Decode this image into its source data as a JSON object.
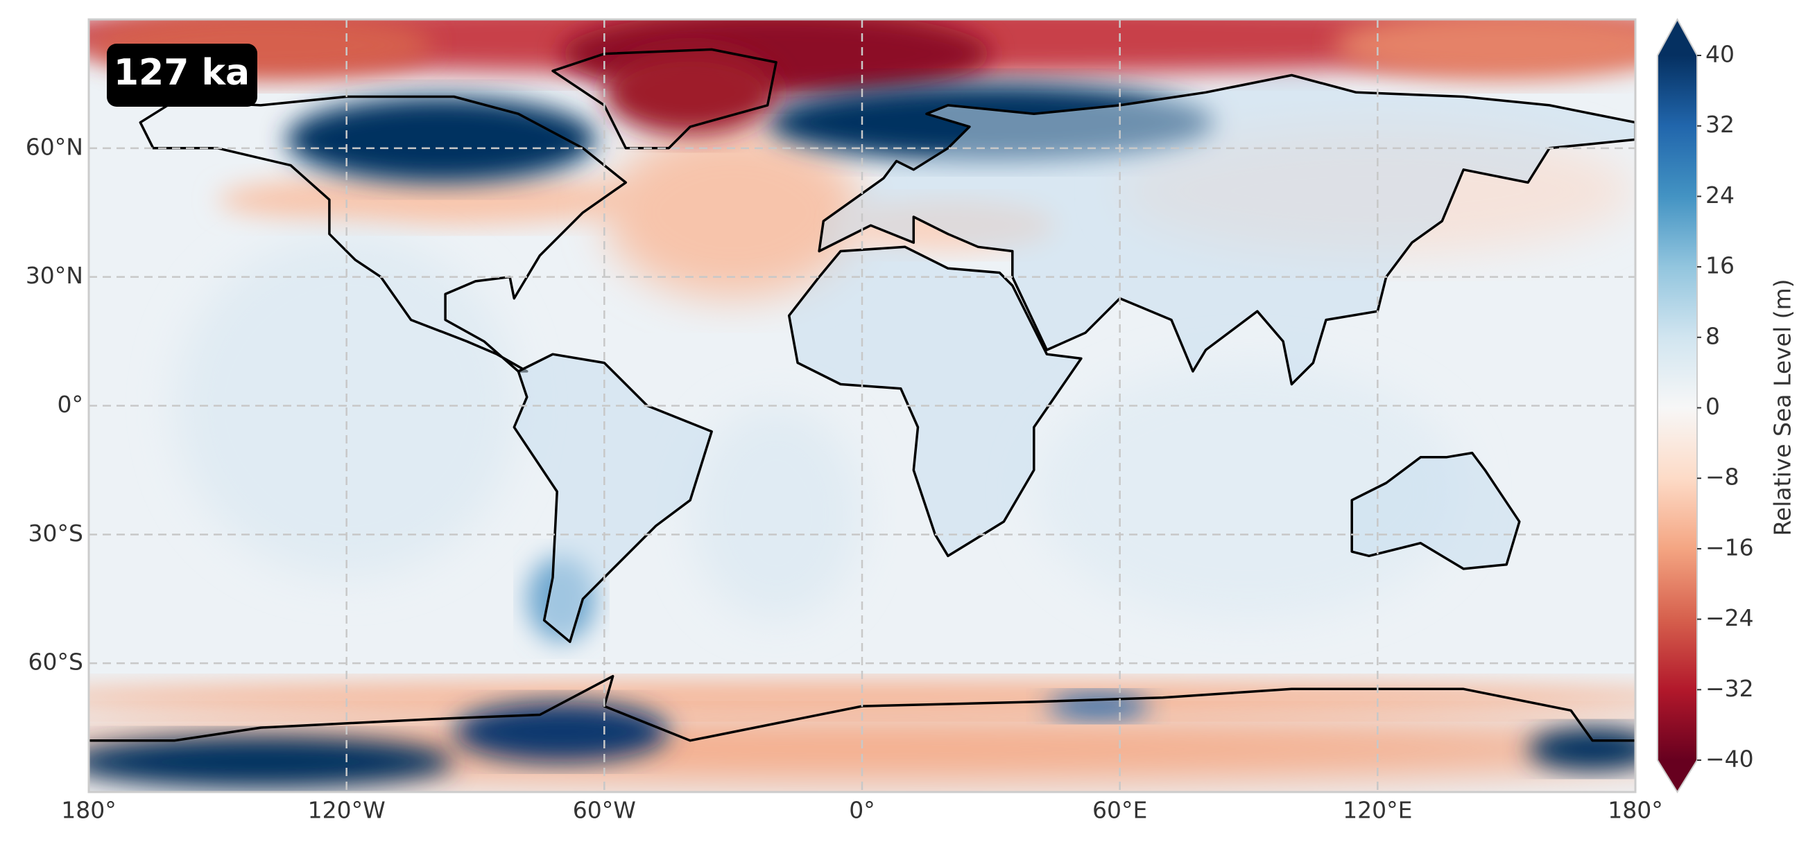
{
  "badge": "127 ka",
  "map": {
    "xlim": [
      -180,
      180
    ],
    "ylim": [
      -90,
      90
    ],
    "xticks": [
      {
        "value": -180,
        "label": "180°"
      },
      {
        "value": -120,
        "label": "120°W"
      },
      {
        "value": -60,
        "label": "60°W"
      },
      {
        "value": 0,
        "label": "0°"
      },
      {
        "value": 60,
        "label": "60°E"
      },
      {
        "value": 120,
        "label": "120°E"
      },
      {
        "value": 180,
        "label": "180°"
      }
    ],
    "yticks": [
      {
        "value": 60,
        "label": "60°N"
      },
      {
        "value": 30,
        "label": "30°N"
      },
      {
        "value": 0,
        "label": "0°"
      },
      {
        "value": -30,
        "label": "30°S"
      },
      {
        "value": -60,
        "label": "60°S"
      }
    ],
    "grid": true
  },
  "colorbar": {
    "label": "Relative Sea Level (m)",
    "lim": [
      -40,
      40
    ],
    "ticks": [
      40,
      32,
      24,
      16,
      8,
      0,
      {
        "value": -8,
        "label": "−8"
      },
      {
        "value": -16,
        "label": "−16"
      },
      {
        "value": -24,
        "label": "−24"
      },
      {
        "value": -32,
        "label": "−32"
      },
      {
        "value": -40,
        "label": "−40"
      }
    ]
  }
}
